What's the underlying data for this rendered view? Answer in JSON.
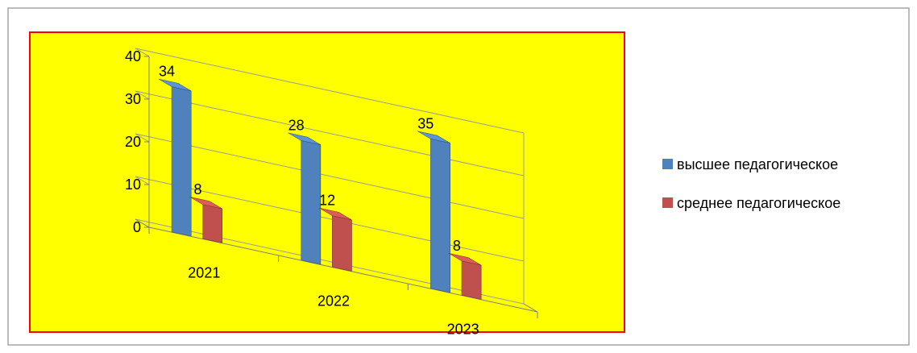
{
  "chart_data": {
    "type": "bar",
    "style": "3d-clustered-column",
    "categories": [
      "2021",
      "2022",
      "2023"
    ],
    "series": [
      {
        "name": "высшее педагогическое",
        "values": [
          34,
          28,
          35
        ],
        "color": "#4F81BD"
      },
      {
        "name": "среднее педагогическое",
        "values": [
          8,
          12,
          8
        ],
        "color": "#C0504D"
      }
    ],
    "y_ticks": [
      "0",
      "10",
      "20",
      "30",
      "40"
    ],
    "data_labels": [
      [
        "34",
        "28",
        "35"
      ],
      [
        "8",
        "12",
        "8"
      ]
    ],
    "ylim": [
      0,
      40
    ],
    "grid": true,
    "legend_position": "right",
    "plot_background": "#FFFF00",
    "plot_border_color": "#FF0000",
    "frame_border_color": "#A6A6A6"
  }
}
